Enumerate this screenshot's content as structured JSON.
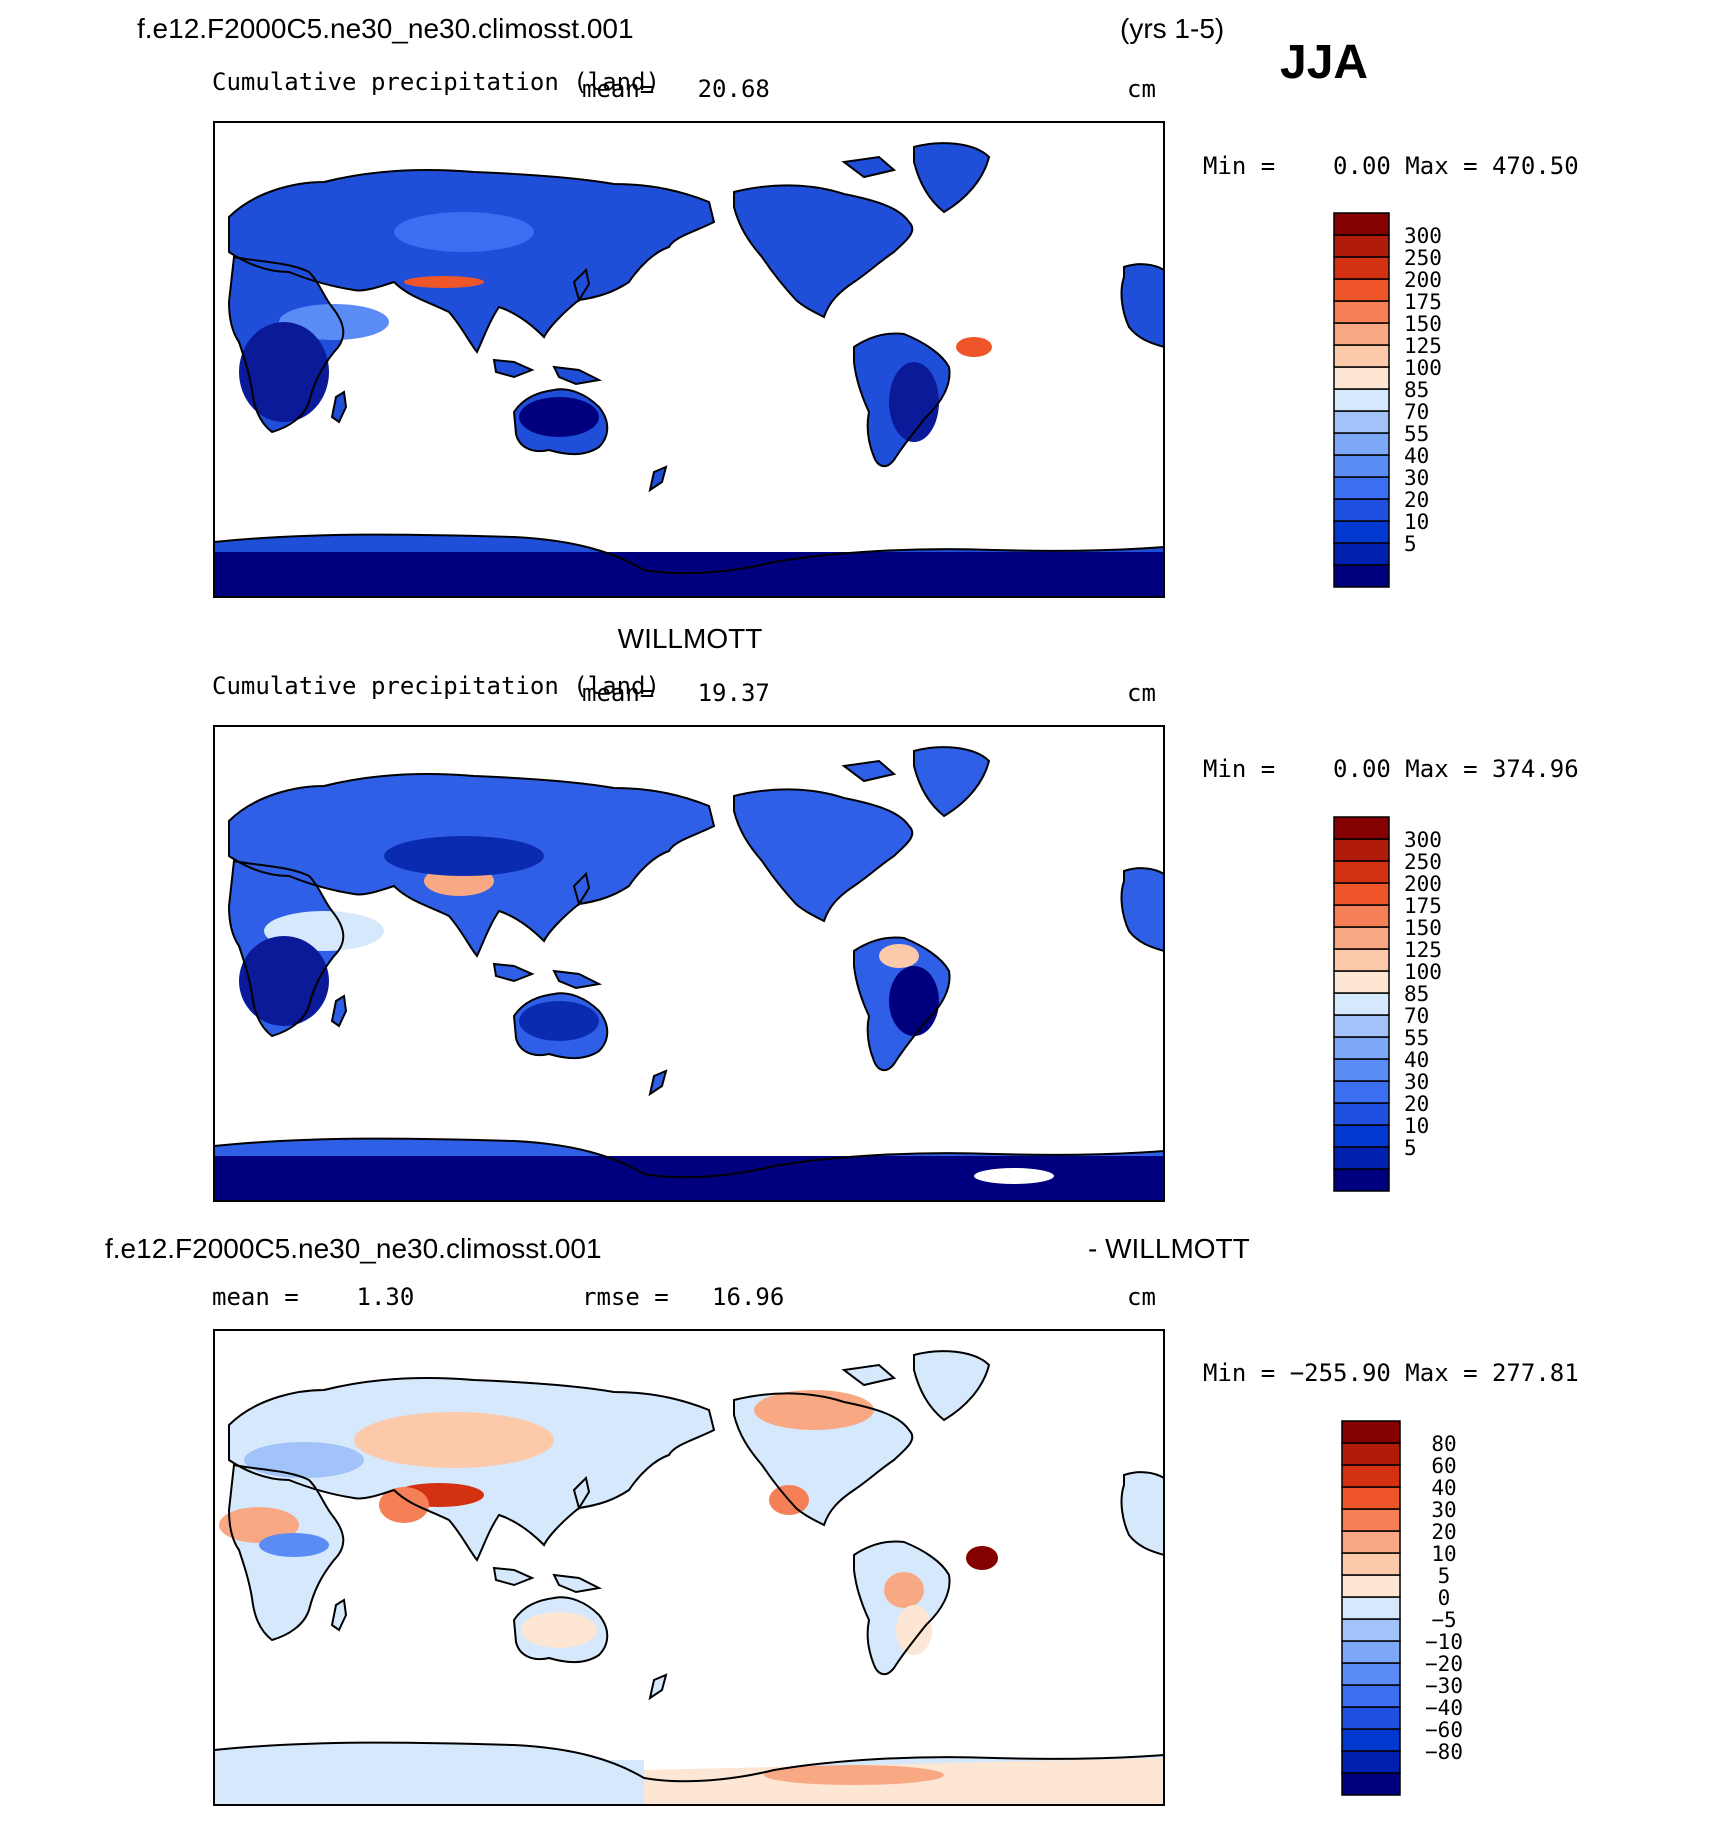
{
  "header": {
    "case_name": "f.e12.F2000C5.ne30_ne30.climosst.001",
    "years": "(yrs 1-5)",
    "season": "JJA"
  },
  "palettes": {
    "abs": [
      "#00007f",
      "#0020b0",
      "#0038d0",
      "#1f50e0",
      "#3b6ef0",
      "#5b8cf5",
      "#7da7f7",
      "#a2c3f9",
      "#d6e8fb",
      "#fde6d4",
      "#fcc9ab",
      "#f9a884",
      "#f57f57",
      "#ee5528",
      "#d43012",
      "#b01a08",
      "#850000"
    ],
    "diff": [
      "#00007f",
      "#0020b0",
      "#0038d0",
      "#1f50e0",
      "#3b6ef0",
      "#5b8cf5",
      "#7da7f7",
      "#a2c3f9",
      "#d6e8fb",
      "#fde6d4",
      "#fcc9ab",
      "#f9a884",
      "#f57f57",
      "#ee5528",
      "#d43012",
      "#b01a08",
      "#850000"
    ]
  },
  "panels": [
    {
      "title": "",
      "subtitle": "Cumulative precipitation (land)",
      "stat_text": "mean=   20.68",
      "rmse_text": "",
      "units": "cm",
      "minmax": "Min =    0.00 Max = 470.50",
      "levels": [
        "300",
        "250",
        "200",
        "175",
        "150",
        "125",
        "100",
        "85",
        "70",
        "55",
        "40",
        "30",
        "20",
        "10",
        "5"
      ]
    },
    {
      "title": "WILLMOTT",
      "subtitle": "Cumulative precipitation (land)",
      "stat_text": "mean=   19.37",
      "rmse_text": "",
      "units": "cm",
      "minmax": "Min =    0.00 Max = 374.96",
      "levels": [
        "300",
        "250",
        "200",
        "175",
        "150",
        "125",
        "100",
        "85",
        "70",
        "55",
        "40",
        "30",
        "20",
        "10",
        "5"
      ]
    },
    {
      "title_left": "f.e12.F2000C5.ne30_ne30.climosst.001",
      "title_right": "- WILLMOTT",
      "subtitle": "",
      "stat_text": "mean =    1.30",
      "rmse_text": "rmse =   16.96",
      "units": "cm",
      "minmax": "Min = −255.90 Max = 277.81",
      "levels": [
        "80",
        "60",
        "40",
        "30",
        "20",
        "10",
        "5",
        "0",
        "−5",
        "−10",
        "−20",
        "−30",
        "−40",
        "−60",
        "−80"
      ]
    }
  ]
}
